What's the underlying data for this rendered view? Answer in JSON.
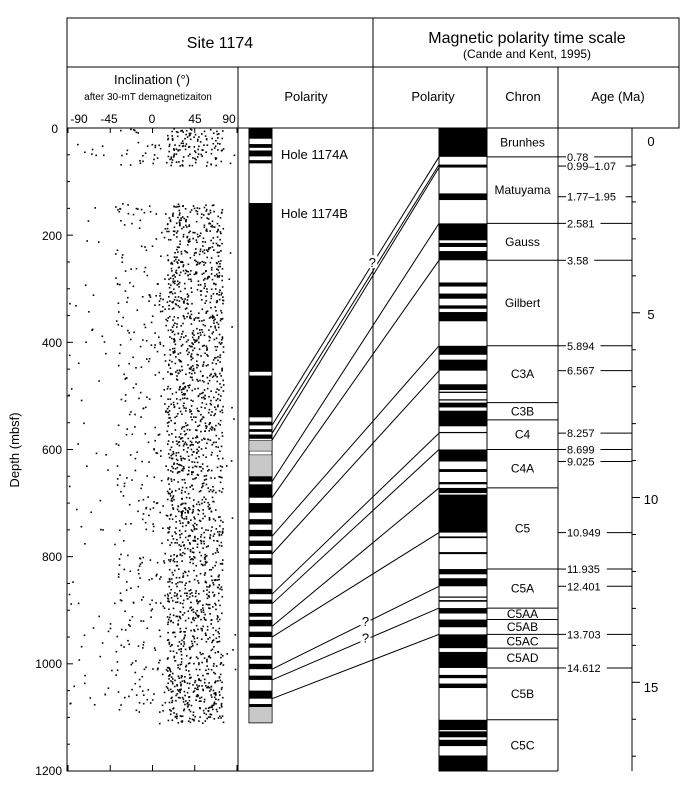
{
  "site_title": "Site 1174",
  "mpts_title": "Magnetic polarity time scale",
  "mpts_reference": "(Cande  and Kent, 1995)",
  "headers": {
    "inclination": "Inclination (°)",
    "inclination_sub": "after 30-mT demagnetizaiton",
    "polarity_site": "Polarity",
    "polarity_mpts": "Polarity",
    "chron": "Chron",
    "age": "Age (Ma)"
  },
  "inclination_ticks": [
    "-90",
    "-45",
    "0",
    "45",
    "90"
  ],
  "depth_axis_label": "Depth (mbsf)",
  "depth_ticks": [
    "0",
    "200",
    "400",
    "600",
    "800",
    "1000",
    "1200"
  ],
  "age_ticks": [
    "0",
    "5",
    "10",
    "15"
  ],
  "hole_labels": [
    "Hole 1174A",
    "Hole 1174B"
  ],
  "question_mark": "?",
  "chrons": [
    {
      "name": "Brunhes",
      "top_ma": 0,
      "bottom_ma": 0.78
    },
    {
      "name": "Matuyama",
      "top_ma": 0.78,
      "bottom_ma": 2.581
    },
    {
      "name": "Gauss",
      "top_ma": 2.581,
      "bottom_ma": 3.58
    },
    {
      "name": "Gilbert",
      "top_ma": 3.58,
      "bottom_ma": 5.894
    },
    {
      "name": "C3A",
      "top_ma": 5.894,
      "bottom_ma": 7.432
    },
    {
      "name": "C3B",
      "top_ma": 7.432,
      "bottom_ma": 7.9
    },
    {
      "name": "C4",
      "top_ma": 7.9,
      "bottom_ma": 8.699
    },
    {
      "name": "C4A",
      "top_ma": 8.699,
      "bottom_ma": 9.74
    },
    {
      "name": "C5",
      "top_ma": 9.74,
      "bottom_ma": 11.935
    },
    {
      "name": "C5A",
      "top_ma": 11.935,
      "bottom_ma": 12.991
    },
    {
      "name": "C5AA",
      "top_ma": 12.991,
      "bottom_ma": 13.302
    },
    {
      "name": "C5AB",
      "top_ma": 13.302,
      "bottom_ma": 13.703
    },
    {
      "name": "C5AC",
      "top_ma": 13.703,
      "bottom_ma": 14.076
    },
    {
      "name": "C5AD",
      "top_ma": 14.076,
      "bottom_ma": 14.612
    },
    {
      "name": "C5B",
      "top_ma": 14.612,
      "bottom_ma": 16.014
    },
    {
      "name": "C5C",
      "top_ma": 16.014,
      "bottom_ma": 17.4
    }
  ],
  "age_labels": [
    {
      "text": "0.78",
      "ma": 0.78
    },
    {
      "text": "0.99–1.07",
      "ma": 1.03
    },
    {
      "text": "1.77–1.95",
      "ma": 1.86
    },
    {
      "text": "2.581",
      "ma": 2.581
    },
    {
      "text": "3.58",
      "ma": 3.58
    },
    {
      "text": "5.894",
      "ma": 5.894
    },
    {
      "text": "6.567",
      "ma": 6.567
    },
    {
      "text": "8.257",
      "ma": 8.257
    },
    {
      "text": "8.699",
      "ma": 8.699
    },
    {
      "text": "9.025",
      "ma": 9.025
    },
    {
      "text": "10.949",
      "ma": 10.949
    },
    {
      "text": "11.935",
      "ma": 11.935
    },
    {
      "text": "12.401",
      "ma": 12.401
    },
    {
      "text": "13.703",
      "ma": 13.703
    },
    {
      "text": "14.612",
      "ma": 14.612
    }
  ],
  "site_polarity": {
    "normal_intervals_mbsf": [
      [
        0,
        20
      ],
      [
        30,
        37
      ],
      [
        42,
        53
      ],
      [
        60,
        66
      ],
      [
        140,
        455
      ],
      [
        462,
        540
      ],
      [
        548,
        555
      ],
      [
        562,
        567
      ],
      [
        572,
        580
      ],
      [
        650,
        660
      ],
      [
        665,
        690
      ],
      [
        700,
        718
      ],
      [
        730,
        740
      ],
      [
        750,
        762
      ],
      [
        770,
        780
      ],
      [
        788,
        795
      ],
      [
        803,
        815
      ],
      [
        833,
        838
      ],
      [
        860,
        870
      ],
      [
        880,
        888
      ],
      [
        905,
        912
      ],
      [
        918,
        930
      ],
      [
        940,
        950
      ],
      [
        962,
        970
      ],
      [
        985,
        992
      ],
      [
        1000,
        1010
      ],
      [
        1022,
        1030
      ],
      [
        1050,
        1065
      ],
      [
        1075,
        1080
      ]
    ],
    "no_data_intervals_mbsf": [
      [
        583,
        603
      ],
      [
        610,
        655
      ],
      [
        1080,
        1110
      ]
    ]
  },
  "mpts_polarity": {
    "normal_intervals_ma": [
      [
        0,
        0.78
      ],
      [
        0.99,
        1.07
      ],
      [
        1.77,
        1.95
      ],
      [
        2.581,
        3.04
      ],
      [
        3.11,
        3.22
      ],
      [
        3.33,
        3.58
      ],
      [
        4.18,
        4.29
      ],
      [
        4.48,
        4.62
      ],
      [
        4.8,
        4.89
      ],
      [
        4.98,
        5.23
      ],
      [
        5.894,
        6.137
      ],
      [
        6.269,
        6.567
      ],
      [
        6.935,
        7.091
      ],
      [
        7.135,
        7.17
      ],
      [
        7.341,
        7.375
      ],
      [
        7.432,
        7.562
      ],
      [
        7.65,
        8.072
      ],
      [
        8.225,
        8.257
      ],
      [
        8.699,
        9.025
      ],
      [
        9.23,
        9.308
      ],
      [
        9.58,
        9.642
      ],
      [
        9.74,
        9.88
      ],
      [
        9.92,
        10.949
      ],
      [
        11.052,
        11.099
      ],
      [
        11.476,
        11.531
      ],
      [
        11.935,
        12.078
      ],
      [
        12.184,
        12.401
      ],
      [
        12.678,
        12.708
      ],
      [
        12.775,
        12.819
      ],
      [
        12.991,
        13.139
      ],
      [
        13.302,
        13.51
      ],
      [
        13.703,
        14.076
      ],
      [
        14.178,
        14.612
      ],
      [
        14.8,
        14.888
      ],
      [
        15.034,
        15.155
      ],
      [
        16.014,
        16.293
      ],
      [
        16.327,
        16.488
      ],
      [
        16.556,
        16.726
      ],
      [
        16.98,
        17.4
      ]
    ]
  },
  "tie_lines": [
    {
      "site_mbsf": 555,
      "ma": 0.78
    },
    {
      "site_mbsf": 570,
      "ma": 0.99
    },
    {
      "site_mbsf": 583,
      "ma": 1.07
    },
    {
      "site_mbsf": 660,
      "ma": 2.581
    },
    {
      "site_mbsf": 690,
      "ma": 3.58
    },
    {
      "site_mbsf": 762,
      "ma": 5.894
    },
    {
      "site_mbsf": 795,
      "ma": 6.567
    },
    {
      "site_mbsf": 870,
      "ma": 8.257
    },
    {
      "site_mbsf": 888,
      "ma": 8.699
    },
    {
      "site_mbsf": 930,
      "ma": 9.74
    },
    {
      "site_mbsf": 950,
      "ma": 10.949
    },
    {
      "site_mbsf": 1010,
      "ma": 12.401
    },
    {
      "site_mbsf": 1030,
      "ma": 12.991
    },
    {
      "site_mbsf": 1065,
      "ma": 13.703
    }
  ],
  "question_ties": [
    {
      "site_mbsf": 555,
      "ma": 0.78,
      "frac": 0.6
    },
    {
      "site_mbsf": 1010,
      "ma": 12.401,
      "frac": 0.56
    },
    {
      "site_mbsf": 1030,
      "ma": 12.991,
      "frac": 0.56
    }
  ],
  "inclination_scatter": {
    "depth_range_mbsf": [
      0,
      1110
    ],
    "dense_band_deg": [
      15,
      75
    ],
    "sparse_spread_deg": [
      -90,
      90
    ]
  },
  "axes": {
    "depth_mbsf": [
      0,
      1200
    ],
    "age_ma": [
      0,
      17.4
    ],
    "inclination_deg": [
      -90,
      90
    ]
  }
}
